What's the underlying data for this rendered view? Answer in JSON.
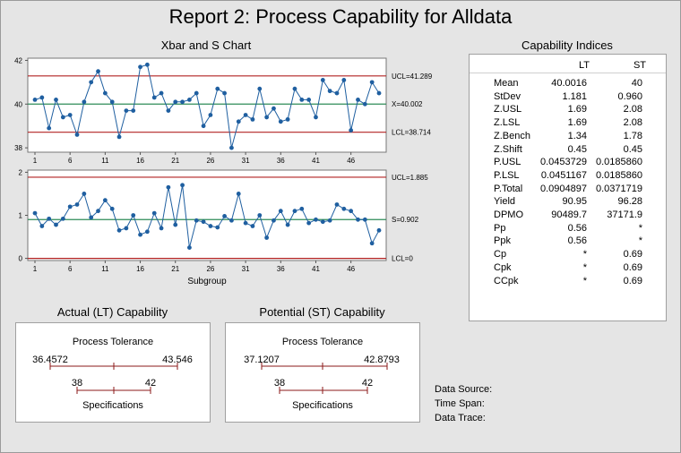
{
  "title": "Report 2: Process Capability for Alldata",
  "xbar_s_title": "Xbar and S Chart",
  "indices_title": "Capability Indices",
  "indices": {
    "columns": [
      "LT",
      "ST"
    ],
    "rows": [
      {
        "label": "Mean",
        "lt": "40.0016",
        "st": "40"
      },
      {
        "label": "StDev",
        "lt": "1.181",
        "st": "0.960"
      },
      {
        "label": "Z.USL",
        "lt": "1.69",
        "st": "2.08"
      },
      {
        "label": "Z.LSL",
        "lt": "1.69",
        "st": "2.08"
      },
      {
        "label": "Z.Bench",
        "lt": "1.34",
        "st": "1.78"
      },
      {
        "label": "Z.Shift",
        "lt": "0.45",
        "st": "0.45"
      },
      {
        "label": "P.USL",
        "lt": "0.0453729",
        "st": "0.0185860"
      },
      {
        "label": "P.LSL",
        "lt": "0.0451167",
        "st": "0.0185860"
      },
      {
        "label": "P.Total",
        "lt": "0.0904897",
        "st": "0.0371719"
      },
      {
        "label": "Yield",
        "lt": "90.95",
        "st": "96.28"
      },
      {
        "label": "DPMO",
        "lt": "90489.7",
        "st": "37171.9"
      },
      {
        "label": "Pp",
        "lt": "0.56",
        "st": "*"
      },
      {
        "label": "Ppk",
        "lt": "0.56",
        "st": "*"
      },
      {
        "label": "Cp",
        "lt": "*",
        "st": "0.69"
      },
      {
        "label": "Cpk",
        "lt": "*",
        "st": "0.69"
      },
      {
        "label": "CCpk",
        "lt": "*",
        "st": "0.69"
      }
    ]
  },
  "actual_title": "Actual (LT) Capability",
  "potential_title": "Potential (ST) Capability",
  "actual": {
    "heading": "Process Tolerance",
    "tol_low": "36.4572",
    "tol_high": "43.546",
    "spec_low": "38",
    "spec_high": "42",
    "footer": "Specifications"
  },
  "potential": {
    "heading": "Process Tolerance",
    "tol_low": "37.1207",
    "tol_high": "42.8793",
    "spec_low": "38",
    "spec_high": "42",
    "footer": "Specifications"
  },
  "meta": {
    "source": "Data Source:",
    "span": "Time Span:",
    "trace": "Data Trace:"
  },
  "colors": {
    "line": "#1f5fa0",
    "point": "#1f5fa0",
    "center": "#2e8b57",
    "limit": "#b22222"
  },
  "chart_data": [
    {
      "type": "line",
      "title": "",
      "xlabel": "",
      "ylabel": "",
      "x_ticks": [
        1,
        6,
        11,
        16,
        21,
        26,
        31,
        36,
        41,
        46
      ],
      "y_ticks": [
        38,
        40,
        42
      ],
      "ylim": [
        37.8,
        42.1
      ],
      "ucl": 41.289,
      "center": 40.002,
      "lcl": 38.714,
      "ucl_label": "UCL=41.289",
      "center_label": "X=40.002",
      "lcl_label": "LCL=38.714",
      "series": [
        {
          "values": [
            40.2,
            40.3,
            38.9,
            40.2,
            39.4,
            39.5,
            38.6,
            40.1,
            41.0,
            41.5,
            40.5,
            40.1,
            38.5,
            39.7,
            39.7,
            41.7,
            41.8,
            40.3,
            40.5,
            39.7,
            40.1,
            40.1,
            40.2,
            40.5,
            39.0,
            39.5,
            40.7,
            40.5,
            38.0,
            39.2,
            39.5,
            39.3,
            40.7,
            39.4,
            39.8,
            39.2,
            39.3,
            40.7,
            40.2,
            40.2,
            39.4,
            41.1,
            40.6,
            40.5,
            41.1,
            38.8,
            40.2,
            40.0,
            41.0,
            40.5
          ]
        }
      ]
    },
    {
      "type": "line",
      "title": "",
      "xlabel": "Subgroup",
      "ylabel": "",
      "x_ticks": [
        1,
        6,
        11,
        16,
        21,
        26,
        31,
        36,
        41,
        46
      ],
      "y_ticks": [
        0,
        1,
        2
      ],
      "ylim": [
        -0.05,
        2.05
      ],
      "ucl": 1.885,
      "center": 0.902,
      "lcl": 0,
      "ucl_label": "UCL=1.885",
      "center_label": "S=0.902",
      "lcl_label": "LCL=0",
      "series": [
        {
          "values": [
            1.05,
            0.75,
            0.92,
            0.78,
            0.92,
            1.2,
            1.25,
            1.5,
            0.95,
            1.1,
            1.35,
            1.15,
            0.65,
            0.7,
            1.0,
            0.55,
            0.62,
            1.05,
            0.7,
            1.65,
            0.78,
            1.7,
            0.25,
            0.88,
            0.85,
            0.75,
            0.72,
            0.98,
            0.88,
            1.5,
            0.82,
            0.75,
            1.0,
            0.48,
            0.88,
            1.1,
            0.78,
            1.1,
            1.15,
            0.82,
            0.9,
            0.85,
            0.88,
            1.25,
            1.15,
            1.1,
            0.9,
            0.9,
            0.35,
            0.65
          ]
        }
      ]
    }
  ]
}
